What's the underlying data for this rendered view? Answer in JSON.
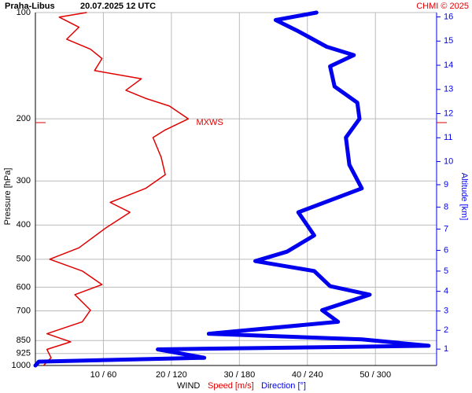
{
  "chart_data": {
    "type": "profile",
    "station": "Praha-Libus",
    "title": "20.07.2025 12 UTC",
    "credit": "CHMI © 2025",
    "ylabel": "Pressure [hPa]",
    "y2label": "Altitude [km]",
    "xlabel": "WIND",
    "ylog": true,
    "ylim": [
      1000,
      100
    ],
    "yticks": [
      100,
      200,
      300,
      400,
      500,
      600,
      700,
      850,
      925,
      1000
    ],
    "xlim": [
      0,
      59
    ],
    "x2lim": [
      0,
      354
    ],
    "xticks": [
      {
        "value": 10,
        "label": "10 / 60"
      },
      {
        "value": 20,
        "label": "20 / 120"
      },
      {
        "value": 30,
        "label": "30 / 180"
      },
      {
        "value": 40,
        "label": "40 / 240"
      },
      {
        "value": 50,
        "label": "50 / 300"
      }
    ],
    "y2ticks": [
      1,
      2,
      3,
      4,
      5,
      6,
      7,
      8,
      9,
      10,
      11,
      12,
      13,
      14,
      15,
      16
    ],
    "grid": true,
    "annotation": {
      "text": "MXWS",
      "pressure": 205
    },
    "series": [
      {
        "name": "Speed [m/s]",
        "color": "#e00000",
        "pressure": [
          100,
          103,
          110,
          119,
          127,
          135,
          146,
          154,
          166,
          175,
          184,
          200,
          215,
          226,
          257,
          288,
          315,
          345,
          368,
          407,
          464,
          500,
          540,
          590,
          630,
          697,
          752,
          813,
          857,
          900,
          951,
          1000
        ],
        "values": [
          7.5,
          3.5,
          6.4,
          4.6,
          8.1,
          9.8,
          8.7,
          15.6,
          13.3,
          16.2,
          19.7,
          22.5,
          19.1,
          17.3,
          18.5,
          19.1,
          16.2,
          11,
          13.9,
          10.4,
          6.4,
          2.1,
          6.9,
          9.8,
          5.8,
          8.1,
          6.9,
          1.7,
          5.2,
          1.7,
          2.3,
          1.2
        ]
      },
      {
        "name": "Direction [°]",
        "color": "#0000ee",
        "axis": "x2",
        "pressure": [
          100,
          105,
          113,
          125,
          132,
          142,
          162,
          180,
          200,
          226,
          270,
          315,
          368,
          428,
          476,
          506,
          540,
          596,
          630,
          697,
          752,
          813,
          843,
          879,
          900,
          951,
          975,
          1000
        ],
        "values": [
          248,
          212,
          232,
          257,
          281,
          260,
          264,
          284,
          286,
          274,
          277,
          288,
          232,
          246,
          222,
          194,
          246,
          260,
          295,
          253,
          267,
          153,
          288,
          347,
          108,
          149,
          3,
          0
        ]
      }
    ]
  }
}
